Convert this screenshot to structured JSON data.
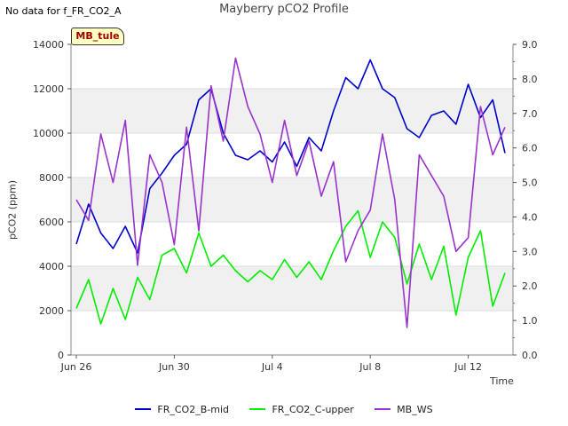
{
  "note_text": "No data for f_FR_CO2_A",
  "site_tag": "MB_tule",
  "colors": {
    "FR_CO2_B-mid": "#0000cc",
    "FR_CO2_C-upper": "#00ee00",
    "MB_WS": "#9933cc"
  },
  "chart_data": {
    "type": "line",
    "title": "Mayberry pCO2 Profile",
    "xlabel": "Time",
    "ylabel": "pCO2 (ppm)",
    "y2label": "",
    "x_start": "2024-06-26",
    "x_ticks": [
      "Jun 26",
      "Jun 30",
      "Jul 4",
      "Jul 8",
      "Jul 12"
    ],
    "ylim": [
      0,
      14000
    ],
    "y_ticks": [
      "0",
      "2000",
      "4000",
      "6000",
      "8000",
      "10000",
      "12000",
      "14000"
    ],
    "y2lim": [
      0,
      9
    ],
    "y2_ticks": [
      "0.0",
      "1.0",
      "2.0",
      "3.0",
      "4.0",
      "5.0",
      "6.0",
      "7.0",
      "8.0",
      "9.0"
    ],
    "grid": "horizontal bands",
    "legend_position": "bottom",
    "series": [
      {
        "name": "FR_CO2_B-mid",
        "axis": "left",
        "color": "#0000cc",
        "x": [
          "Jun 26",
          "Jun 26 12:00",
          "Jun 27",
          "Jun 27 12:00",
          "Jun 28",
          "Jun 28 12:00",
          "Jun 29",
          "Jun 29 12:00",
          "Jun 30",
          "Jun 30 12:00",
          "Jul 1",
          "Jul 1 12:00",
          "Jul 2",
          "Jul 2 12:00",
          "Jul 3",
          "Jul 3 12:00",
          "Jul 4",
          "Jul 4 12:00",
          "Jul 5",
          "Jul 5 12:00",
          "Jul 6",
          "Jul 6 12:00",
          "Jul 7",
          "Jul 7 12:00",
          "Jul 8",
          "Jul 8 12:00",
          "Jul 9",
          "Jul 9 12:00",
          "Jul 10",
          "Jul 10 12:00",
          "Jul 11",
          "Jul 11 12:00",
          "Jul 12",
          "Jul 12 12:00",
          "Jul 13",
          "Jul 13 12:00"
        ],
        "values": [
          5000,
          6800,
          5500,
          4800,
          5800,
          4600,
          7500,
          8200,
          9000,
          9500,
          11500,
          12000,
          10000,
          9000,
          8800,
          9200,
          8700,
          9600,
          8500,
          9800,
          9200,
          11000,
          12500,
          12000,
          13300,
          12000,
          11600,
          10200,
          9800,
          10800,
          11000,
          10400,
          12200,
          10700,
          11500,
          9100
        ]
      },
      {
        "name": "FR_CO2_C-upper",
        "axis": "left",
        "color": "#00ee00",
        "x": [
          "Jun 26",
          "Jun 26 12:00",
          "Jun 27",
          "Jun 27 12:00",
          "Jun 28",
          "Jun 28 12:00",
          "Jun 29",
          "Jun 29 12:00",
          "Jun 30",
          "Jun 30 12:00",
          "Jul 1",
          "Jul 1 12:00",
          "Jul 2",
          "Jul 2 12:00",
          "Jul 3",
          "Jul 3 12:00",
          "Jul 4",
          "Jul 4 12:00",
          "Jul 5",
          "Jul 5 12:00",
          "Jul 6",
          "Jul 6 12:00",
          "Jul 7",
          "Jul 7 12:00",
          "Jul 8",
          "Jul 8 12:00",
          "Jul 9",
          "Jul 9 12:00",
          "Jul 10",
          "Jul 10 12:00",
          "Jul 11",
          "Jul 11 12:00",
          "Jul 12",
          "Jul 12 12:00",
          "Jul 13",
          "Jul 13 12:00"
        ],
        "values": [
          2100,
          3400,
          1400,
          3000,
          1600,
          3500,
          2500,
          4500,
          4800,
          3700,
          5500,
          4000,
          4500,
          3800,
          3300,
          3800,
          3400,
          4300,
          3500,
          4200,
          3400,
          4700,
          5800,
          6500,
          4400,
          6000,
          5300,
          3200,
          5000,
          3400,
          4900,
          1800,
          4400,
          5600,
          2200,
          3700
        ]
      },
      {
        "name": "MB_WS",
        "axis": "right",
        "color": "#9933cc",
        "x": [
          "Jun 26",
          "Jun 26 12:00",
          "Jun 27",
          "Jun 27 12:00",
          "Jun 28",
          "Jun 28 12:00",
          "Jun 29",
          "Jun 29 12:00",
          "Jun 30",
          "Jun 30 12:00",
          "Jul 1",
          "Jul 1 12:00",
          "Jul 2",
          "Jul 2 12:00",
          "Jul 3",
          "Jul 3 12:00",
          "Jul 4",
          "Jul 4 12:00",
          "Jul 5",
          "Jul 5 12:00",
          "Jul 6",
          "Jul 6 12:00",
          "Jul 7",
          "Jul 7 12:00",
          "Jul 8",
          "Jul 8 12:00",
          "Jul 9",
          "Jul 9 12:00",
          "Jul 10",
          "Jul 10 12:00",
          "Jul 11",
          "Jul 11 12:00",
          "Jul 12",
          "Jul 12 12:00",
          "Jul 13",
          "Jul 13 12:00"
        ],
        "values": [
          4.5,
          3.9,
          6.4,
          5.0,
          6.8,
          2.6,
          5.8,
          5.0,
          3.2,
          6.6,
          3.6,
          7.8,
          6.2,
          8.6,
          7.2,
          6.4,
          5.0,
          6.8,
          5.2,
          6.2,
          4.6,
          5.6,
          2.7,
          3.6,
          4.2,
          6.4,
          4.5,
          0.8,
          5.8,
          5.2,
          4.6,
          3.0,
          3.4,
          7.2,
          5.8,
          6.6
        ]
      }
    ]
  }
}
